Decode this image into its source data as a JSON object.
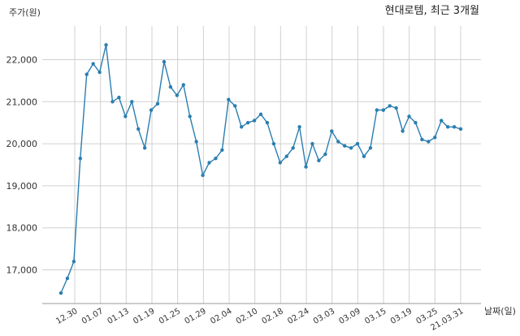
{
  "chart_data": {
    "type": "line",
    "title": "현대로템, 최근 3개월",
    "ylabel": "주가(원)",
    "xlabel": "날짜(일)",
    "ylim": [
      16200,
      22800
    ],
    "yticks": [
      17000,
      18000,
      19000,
      20000,
      21000,
      22000
    ],
    "ytick_labels": [
      "17,000",
      "18,000",
      "19,000",
      "20,000",
      "21,000",
      "22,000"
    ],
    "xtick_labels": [
      "12.30",
      "01.07",
      "01.13",
      "01.19",
      "01.25",
      "01.29",
      "02.04",
      "02.10",
      "02.18",
      "02.24",
      "03.03",
      "03.09",
      "03.15",
      "03.19",
      "03.25",
      "21.03.31"
    ],
    "grid": true,
    "color": "#2a7eb0",
    "series": [
      {
        "values": [
          16450,
          16800,
          17200,
          19650,
          21650,
          21900,
          21700,
          22350,
          21000,
          21100,
          20650,
          21000,
          20350,
          19900,
          20800,
          20950,
          21950,
          21350,
          21150,
          21400,
          20650,
          20050,
          19250,
          19550,
          19650,
          19850,
          21050,
          20900,
          20400,
          20500,
          20550,
          20700,
          20500,
          20000,
          19550,
          19700,
          19900,
          20400,
          19450,
          20000,
          19600,
          19750,
          20300,
          20050,
          19950,
          19900,
          20000,
          19700,
          19900,
          20800,
          20800,
          20900,
          20850,
          20300,
          20650,
          20500,
          20100,
          20050,
          20150,
          20550,
          20400,
          20400,
          20350
        ]
      }
    ]
  }
}
